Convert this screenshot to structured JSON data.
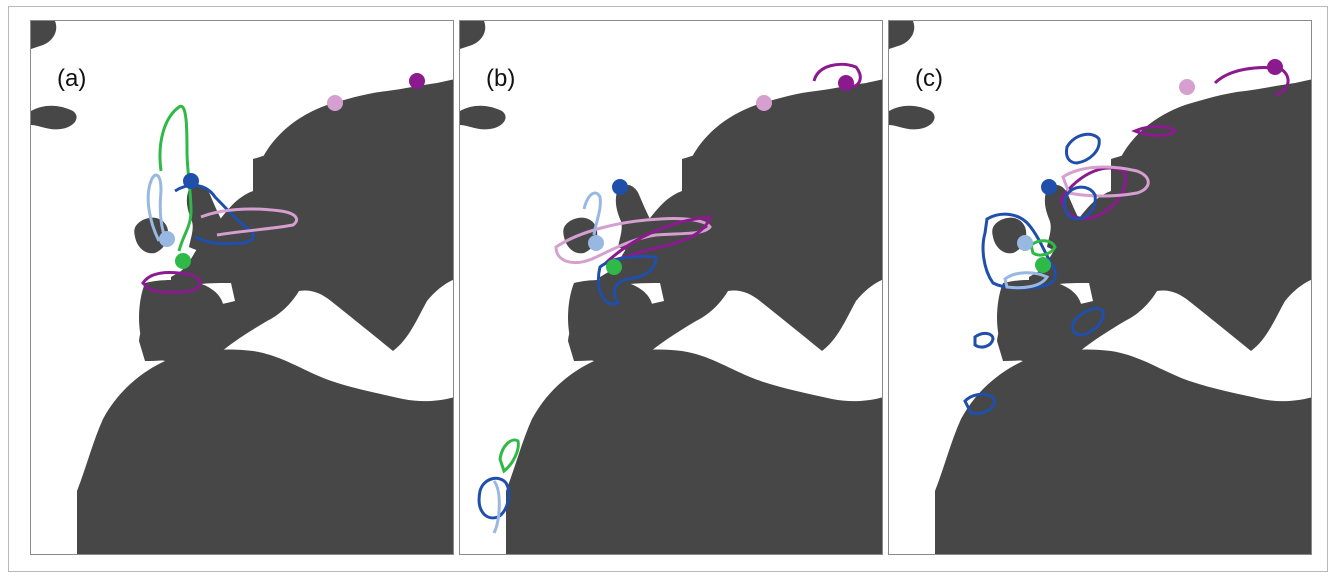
{
  "colors": {
    "land": "#474747",
    "sea": "#ffffff",
    "dark_blue": "#1f4faa",
    "light_blue": "#98b8e2",
    "green": "#2fba47",
    "dark_purple": "#8b1a8f",
    "light_purple": "#d59fd0"
  },
  "panels": [
    {
      "label": "(a)"
    },
    {
      "label": "(b)"
    },
    {
      "label": "(c)"
    }
  ]
}
